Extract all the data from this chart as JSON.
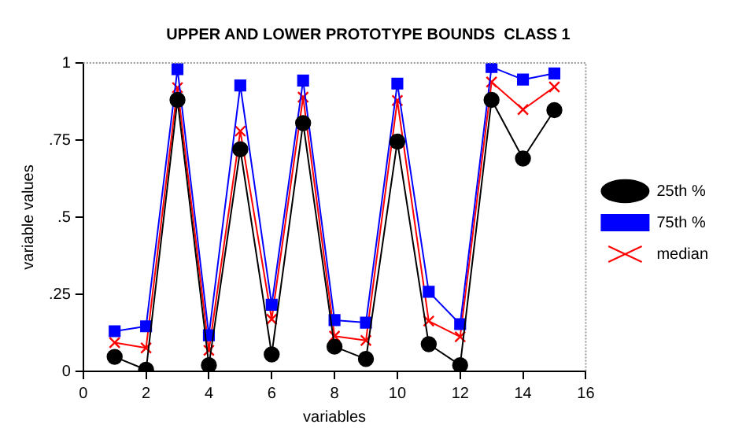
{
  "chart_data": {
    "type": "line",
    "title": "UPPER AND LOWER PROTOTYPE BOUNDS  CLASS 1",
    "xlabel": "variables",
    "ylabel": "variable values",
    "x": [
      1,
      2,
      3,
      4,
      5,
      6,
      7,
      8,
      9,
      10,
      11,
      12,
      13,
      14,
      15
    ],
    "series": [
      {
        "name": "25th %",
        "color": "#000000",
        "marker": "circle",
        "values": [
          0.047,
          0.005,
          0.88,
          0.02,
          0.72,
          0.055,
          0.805,
          0.08,
          0.04,
          0.745,
          0.088,
          0.02,
          0.88,
          0.69,
          0.847
        ]
      },
      {
        "name": "75th %",
        "color": "#0000ff",
        "marker": "square",
        "values": [
          0.13,
          0.146,
          0.98,
          0.117,
          0.927,
          0.216,
          0.943,
          0.166,
          0.158,
          0.933,
          0.258,
          0.153,
          0.987,
          0.946,
          0.966
        ]
      },
      {
        "name": "median",
        "color": "#ff0000",
        "marker": "cross",
        "values": [
          0.093,
          0.076,
          0.92,
          0.068,
          0.779,
          0.169,
          0.889,
          0.114,
          0.1,
          0.878,
          0.163,
          0.112,
          0.938,
          0.849,
          0.922
        ]
      }
    ],
    "xlim": [
      0,
      16
    ],
    "xticks": [
      0,
      2,
      4,
      6,
      8,
      10,
      12,
      14,
      16
    ],
    "ylim": [
      0,
      1
    ],
    "yticks": [
      0,
      {
        "value": 0.25,
        "label": ".25"
      },
      {
        "value": 0.5,
        "label": ".5"
      },
      {
        "value": 0.75,
        "label": ".75"
      },
      1
    ],
    "grid": false,
    "legend": "right",
    "line_style": "solid"
  }
}
